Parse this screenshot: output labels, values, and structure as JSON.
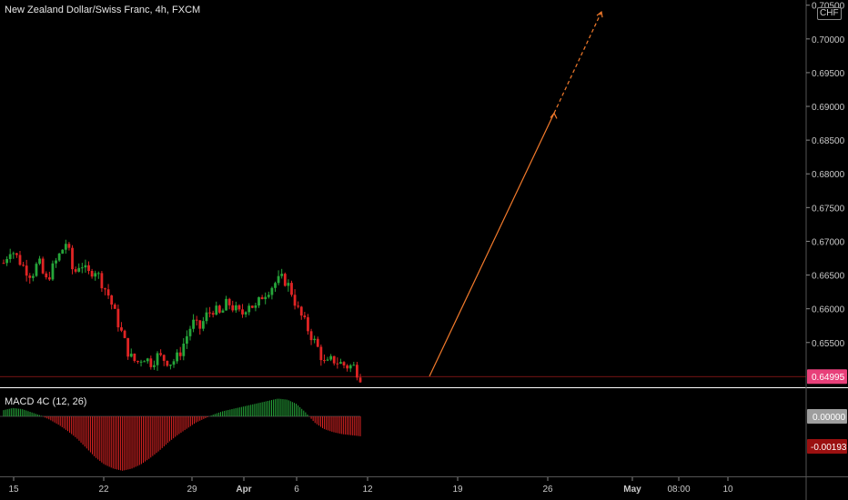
{
  "header": {
    "title": "New Zealand Dollar/Swiss Franc, 4h, FXCM",
    "currency": "CHF"
  },
  "colors": {
    "background": "#000000",
    "up": "#26a63a",
    "down": "#e02424",
    "arrow": "#f27a2b",
    "price_label_bg": "#e8407a",
    "macd_zero_bg": "#9e9e9e",
    "macd_value_bg": "#9b1010",
    "grid_line": "#ffffff"
  },
  "chart_data": [
    {
      "type": "candlestick",
      "title": "New Zealand Dollar/Swiss Franc, 4h, FXCM",
      "ylim": [
        0.6485,
        0.7055
      ],
      "y_ticks": [
        "0.70500",
        "0.70000",
        "0.69500",
        "0.69000",
        "0.68500",
        "0.68000",
        "0.67500",
        "0.67000",
        "0.66500",
        "0.66000",
        "0.65500"
      ],
      "x_ticks": [
        "15",
        "22",
        "29",
        "Apr",
        "6",
        "12",
        "19",
        "26",
        "May",
        "08:00",
        "10"
      ],
      "last_price": 0.64995,
      "last_price_label": "0.64995",
      "close_series": [
        0.6668,
        0.669,
        0.6675,
        0.666,
        0.665,
        0.667,
        0.664,
        0.666,
        0.668,
        0.67,
        0.665,
        0.667,
        0.665,
        0.666,
        0.664,
        0.662,
        0.659,
        0.656,
        0.653,
        0.652,
        0.653,
        0.652,
        0.653,
        0.6525,
        0.652,
        0.653,
        0.6555,
        0.658,
        0.657,
        0.659,
        0.66,
        0.659,
        0.661,
        0.66,
        0.659,
        0.661,
        0.66,
        0.662,
        0.663,
        0.664,
        0.6645,
        0.663,
        0.66,
        0.658,
        0.656,
        0.654,
        0.6515,
        0.6525,
        0.652,
        0.6515,
        0.6515,
        0.65
      ],
      "forecast_arrow": {
        "start": [
          "Apr 15",
          0.65
        ],
        "mid": [
          "Apr 26",
          0.689
        ],
        "end": [
          "May 1",
          0.704
        ]
      }
    },
    {
      "type": "histogram",
      "title": "MACD 4C (12, 26)",
      "zero_label": "0.00000",
      "value_label": "-0.00193",
      "value": -0.00193,
      "values": [
        0.0006,
        0.0008,
        0.0007,
        0.0004,
        0.0001,
        -0.0003,
        -0.0008,
        -0.0014,
        -0.0021,
        -0.003,
        -0.0039,
        -0.0046,
        -0.005,
        -0.0052,
        -0.005,
        -0.0046,
        -0.004,
        -0.0033,
        -0.0025,
        -0.0018,
        -0.0012,
        -0.0006,
        -0.0002,
        0.0002,
        0.0005,
        0.0007,
        0.0009,
        0.0011,
        0.0013,
        0.0015,
        0.0017,
        0.0016,
        0.0012,
        0.0004,
        -0.0006,
        -0.0012,
        -0.0015,
        -0.0017,
        -0.0018,
        -0.0019
      ]
    }
  ]
}
